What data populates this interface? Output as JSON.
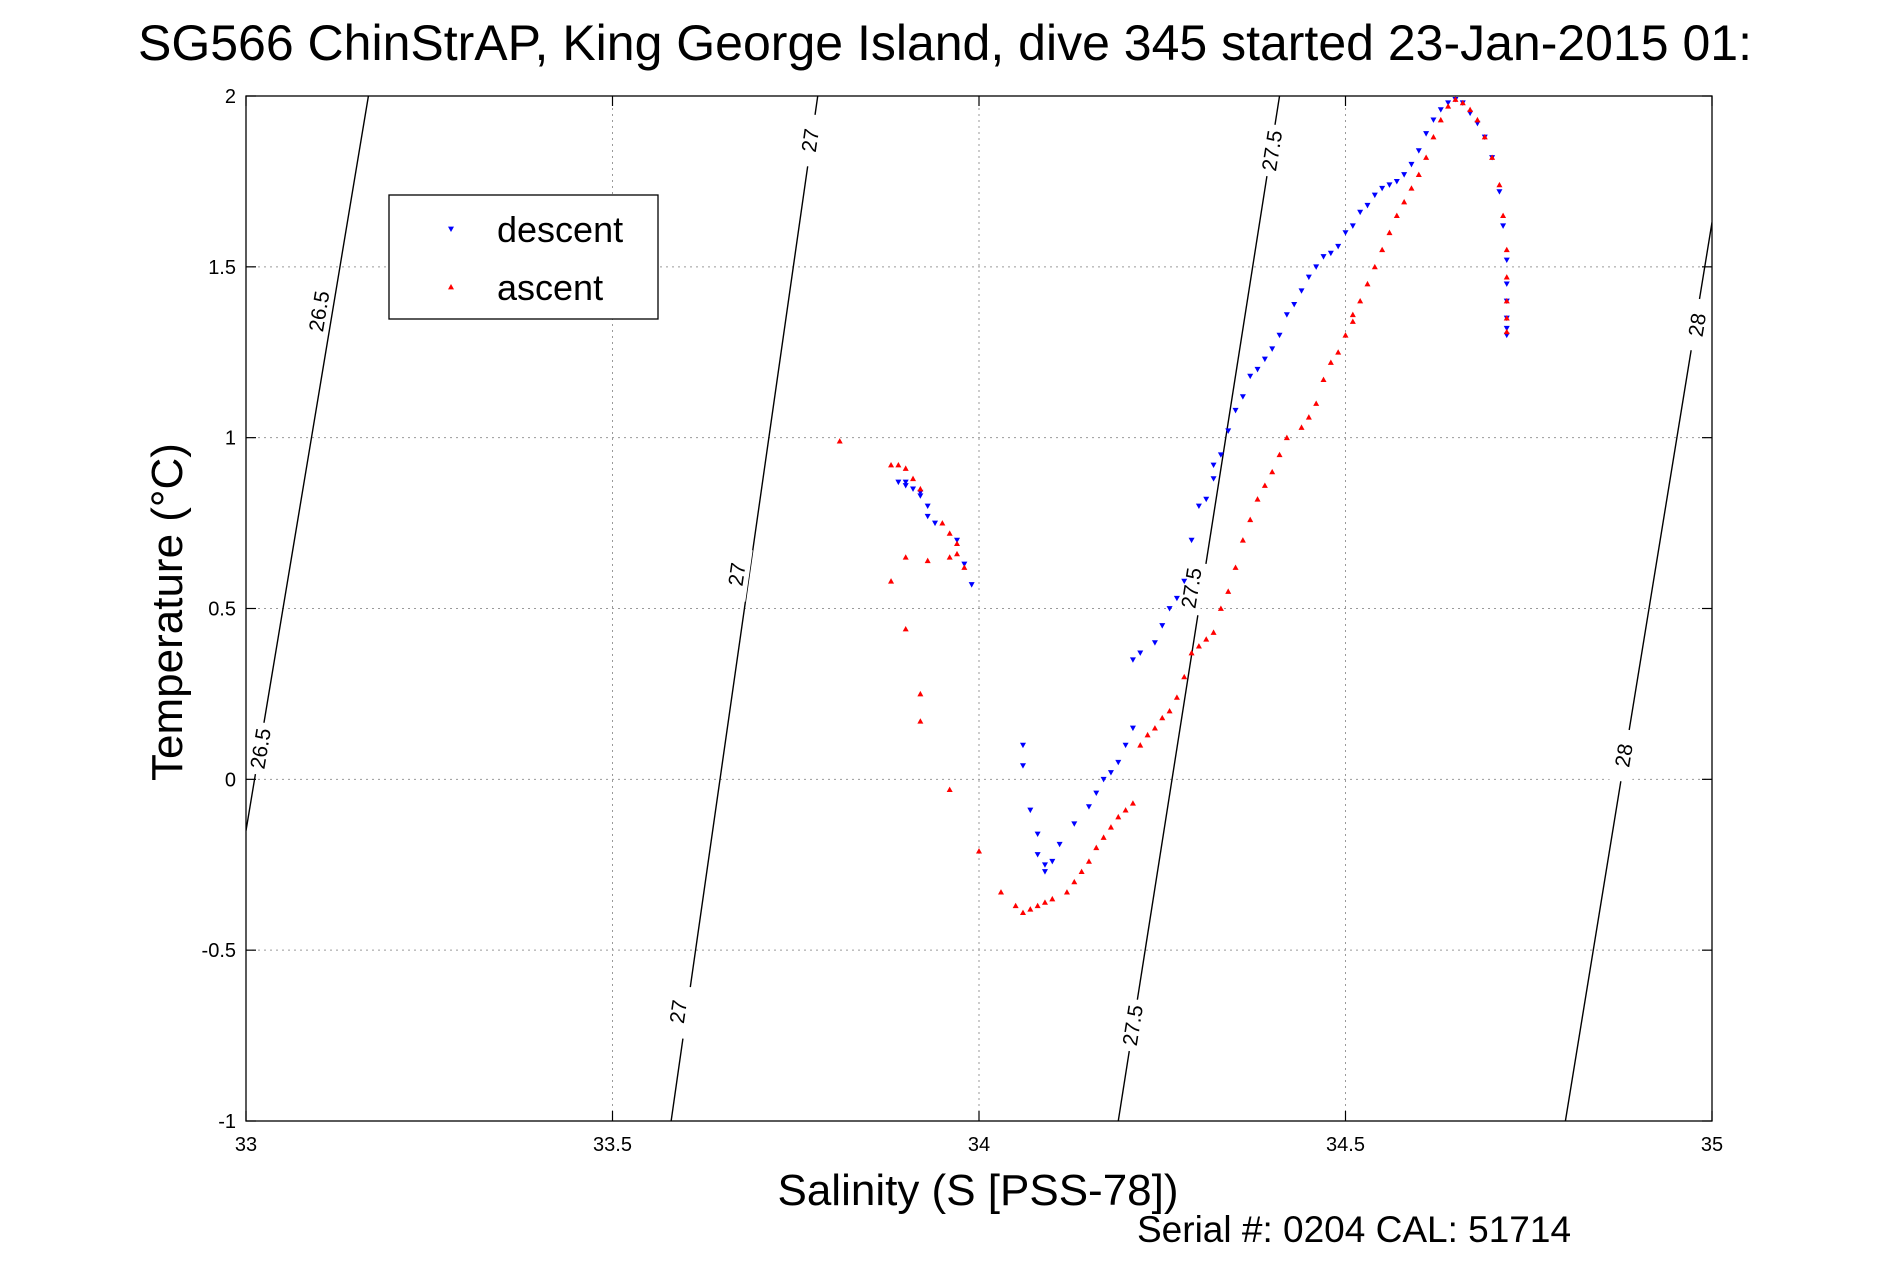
{
  "chart_data": {
    "type": "scatter",
    "title": "SG566 ChinStrAP, King George Island, dive 345 started 23-Jan-2015 01:",
    "xlabel": "Salinity (S [PSS-78])",
    "ylabel": "Temperature (°C)",
    "footer": "Serial #: 0204  CAL: 51714",
    "xlim": [
      33,
      35
    ],
    "ylim": [
      -1,
      2
    ],
    "x_ticks": [
      33,
      33.5,
      34,
      34.5,
      35
    ],
    "x_tick_labels": [
      "33",
      "33.5",
      "34",
      "34.5",
      "35"
    ],
    "y_ticks": [
      -1,
      -0.5,
      0,
      0.5,
      1,
      1.5,
      2
    ],
    "y_tick_labels": [
      "-1",
      "-0.5",
      "0",
      "0.5",
      "1",
      "1.5",
      "2"
    ],
    "grid": true,
    "legend": {
      "placement": "top-left",
      "entries": [
        "descent",
        "ascent"
      ]
    },
    "density_contours": [
      {
        "sigma": "26.5",
        "points": [
          [
            33.0,
            -0.15
          ],
          [
            33.167,
            2.0
          ]
        ],
        "labels": [
          {
            "text": "26.5",
            "x": 33.1,
            "y": 1.37
          },
          {
            "text": "26.5",
            "x": 33.02,
            "y": 0.09
          }
        ]
      },
      {
        "sigma": "27",
        "points": [
          [
            33.58,
            -1.0
          ],
          [
            33.78,
            2.0
          ]
        ],
        "labels": [
          {
            "text": "27",
            "x": 33.77,
            "y": 1.87
          },
          {
            "text": "27",
            "x": 33.67,
            "y": 0.6
          },
          {
            "text": "27",
            "x": 33.59,
            "y": -0.68
          }
        ]
      },
      {
        "sigma": "27.5",
        "points": [
          [
            34.19,
            -1.0
          ],
          [
            34.41,
            2.0
          ]
        ],
        "labels": [
          {
            "text": "27.5",
            "x": 34.4,
            "y": 1.84
          },
          {
            "text": "27.5",
            "x": 34.29,
            "y": 0.56
          },
          {
            "text": "27.5",
            "x": 34.21,
            "y": -0.72
          }
        ]
      },
      {
        "sigma": "28",
        "points": [
          [
            34.8,
            -1.0
          ],
          [
            35.0,
            1.63
          ]
        ],
        "labels": [
          {
            "text": "28",
            "x": 34.98,
            "y": 1.33
          },
          {
            "text": "28",
            "x": 34.88,
            "y": 0.07
          }
        ]
      }
    ],
    "series": [
      {
        "name": "descent",
        "color": "#0000ff",
        "marker": "triangle-down",
        "points": [
          [
            33.89,
            0.87
          ],
          [
            33.9,
            0.87
          ],
          [
            33.9,
            0.86
          ],
          [
            33.91,
            0.85
          ],
          [
            33.92,
            0.84
          ],
          [
            33.92,
            0.83
          ],
          [
            33.93,
            0.8
          ],
          [
            33.93,
            0.77
          ],
          [
            33.94,
            0.75
          ],
          [
            33.97,
            0.7
          ],
          [
            33.98,
            0.63
          ],
          [
            33.99,
            0.57
          ],
          [
            34.06,
            0.1
          ],
          [
            34.06,
            0.04
          ],
          [
            34.07,
            -0.09
          ],
          [
            34.08,
            -0.16
          ],
          [
            34.08,
            -0.22
          ],
          [
            34.09,
            -0.25
          ],
          [
            34.09,
            -0.27
          ],
          [
            34.1,
            -0.24
          ],
          [
            34.11,
            -0.19
          ],
          [
            34.13,
            -0.13
          ],
          [
            34.15,
            -0.08
          ],
          [
            34.16,
            -0.04
          ],
          [
            34.17,
            0.0
          ],
          [
            34.18,
            0.02
          ],
          [
            34.19,
            0.05
          ],
          [
            34.2,
            0.1
          ],
          [
            34.21,
            0.15
          ],
          [
            34.21,
            0.35
          ],
          [
            34.22,
            0.37
          ],
          [
            34.24,
            0.4
          ],
          [
            34.25,
            0.45
          ],
          [
            34.26,
            0.5
          ],
          [
            34.27,
            0.53
          ],
          [
            34.28,
            0.58
          ],
          [
            34.29,
            0.7
          ],
          [
            34.3,
            0.8
          ],
          [
            34.31,
            0.82
          ],
          [
            34.32,
            0.88
          ],
          [
            34.32,
            0.92
          ],
          [
            34.33,
            0.95
          ],
          [
            34.34,
            1.02
          ],
          [
            34.35,
            1.08
          ],
          [
            34.36,
            1.12
          ],
          [
            34.37,
            1.18
          ],
          [
            34.38,
            1.2
          ],
          [
            34.39,
            1.23
          ],
          [
            34.4,
            1.26
          ],
          [
            34.41,
            1.3
          ],
          [
            34.42,
            1.36
          ],
          [
            34.43,
            1.39
          ],
          [
            34.44,
            1.43
          ],
          [
            34.45,
            1.47
          ],
          [
            34.46,
            1.5
          ],
          [
            34.47,
            1.53
          ],
          [
            34.48,
            1.54
          ],
          [
            34.49,
            1.56
          ],
          [
            34.5,
            1.6
          ],
          [
            34.51,
            1.62
          ],
          [
            34.52,
            1.66
          ],
          [
            34.53,
            1.68
          ],
          [
            34.54,
            1.71
          ],
          [
            34.55,
            1.73
          ],
          [
            34.56,
            1.74
          ],
          [
            34.57,
            1.75
          ],
          [
            34.58,
            1.77
          ],
          [
            34.59,
            1.8
          ],
          [
            34.6,
            1.84
          ],
          [
            34.61,
            1.89
          ],
          [
            34.62,
            1.93
          ],
          [
            34.63,
            1.96
          ],
          [
            34.64,
            1.98
          ],
          [
            34.65,
            1.99
          ],
          [
            34.66,
            1.98
          ],
          [
            34.67,
            1.95
          ],
          [
            34.68,
            1.92
          ],
          [
            34.69,
            1.88
          ],
          [
            34.7,
            1.82
          ],
          [
            34.71,
            1.72
          ],
          [
            34.715,
            1.62
          ],
          [
            34.72,
            1.52
          ],
          [
            34.72,
            1.45
          ],
          [
            34.72,
            1.4
          ],
          [
            34.72,
            1.35
          ],
          [
            34.72,
            1.32
          ],
          [
            34.72,
            1.3
          ]
        ]
      },
      {
        "name": "ascent",
        "color": "#ff0000",
        "marker": "triangle-up",
        "points": [
          [
            33.81,
            0.99
          ],
          [
            33.88,
            0.92
          ],
          [
            33.89,
            0.92
          ],
          [
            33.9,
            0.91
          ],
          [
            33.91,
            0.88
          ],
          [
            33.92,
            0.85
          ],
          [
            33.95,
            0.75
          ],
          [
            33.96,
            0.72
          ],
          [
            33.97,
            0.69
          ],
          [
            33.97,
            0.66
          ],
          [
            33.96,
            0.65
          ],
          [
            33.93,
            0.64
          ],
          [
            33.9,
            0.65
          ],
          [
            33.98,
            0.62
          ],
          [
            33.88,
            0.58
          ],
          [
            33.9,
            0.44
          ],
          [
            33.92,
            0.25
          ],
          [
            33.92,
            0.17
          ],
          [
            33.96,
            -0.03
          ],
          [
            34.0,
            -0.21
          ],
          [
            34.03,
            -0.33
          ],
          [
            34.05,
            -0.37
          ],
          [
            34.06,
            -0.39
          ],
          [
            34.07,
            -0.38
          ],
          [
            34.08,
            -0.37
          ],
          [
            34.09,
            -0.36
          ],
          [
            34.1,
            -0.35
          ],
          [
            34.12,
            -0.33
          ],
          [
            34.13,
            -0.3
          ],
          [
            34.14,
            -0.27
          ],
          [
            34.15,
            -0.24
          ],
          [
            34.16,
            -0.2
          ],
          [
            34.17,
            -0.17
          ],
          [
            34.18,
            -0.14
          ],
          [
            34.19,
            -0.11
          ],
          [
            34.2,
            -0.09
          ],
          [
            34.21,
            -0.07
          ],
          [
            34.22,
            0.1
          ],
          [
            34.23,
            0.13
          ],
          [
            34.24,
            0.15
          ],
          [
            34.25,
            0.18
          ],
          [
            34.26,
            0.2
          ],
          [
            34.27,
            0.24
          ],
          [
            34.28,
            0.3
          ],
          [
            34.29,
            0.37
          ],
          [
            34.3,
            0.39
          ],
          [
            34.31,
            0.41
          ],
          [
            34.32,
            0.43
          ],
          [
            34.33,
            0.5
          ],
          [
            34.34,
            0.55
          ],
          [
            34.35,
            0.62
          ],
          [
            34.36,
            0.7
          ],
          [
            34.37,
            0.76
          ],
          [
            34.38,
            0.82
          ],
          [
            34.39,
            0.86
          ],
          [
            34.4,
            0.9
          ],
          [
            34.41,
            0.95
          ],
          [
            34.42,
            1.0
          ],
          [
            34.44,
            1.03
          ],
          [
            34.45,
            1.06
          ],
          [
            34.46,
            1.1
          ],
          [
            34.47,
            1.17
          ],
          [
            34.48,
            1.22
          ],
          [
            34.49,
            1.25
          ],
          [
            34.5,
            1.3
          ],
          [
            34.51,
            1.34
          ],
          [
            34.51,
            1.36
          ],
          [
            34.52,
            1.4
          ],
          [
            34.53,
            1.45
          ],
          [
            34.54,
            1.5
          ],
          [
            34.55,
            1.55
          ],
          [
            34.56,
            1.6
          ],
          [
            34.57,
            1.65
          ],
          [
            34.58,
            1.69
          ],
          [
            34.59,
            1.73
          ],
          [
            34.6,
            1.77
          ],
          [
            34.61,
            1.82
          ],
          [
            34.62,
            1.88
          ],
          [
            34.63,
            1.93
          ],
          [
            34.64,
            1.97
          ],
          [
            34.65,
            1.99
          ],
          [
            34.66,
            1.98
          ],
          [
            34.67,
            1.96
          ],
          [
            34.68,
            1.93
          ],
          [
            34.69,
            1.88
          ],
          [
            34.7,
            1.82
          ],
          [
            34.71,
            1.74
          ],
          [
            34.715,
            1.65
          ],
          [
            34.72,
            1.55
          ],
          [
            34.72,
            1.47
          ],
          [
            34.72,
            1.4
          ],
          [
            34.72,
            1.35
          ],
          [
            34.72,
            1.31
          ]
        ]
      }
    ]
  }
}
